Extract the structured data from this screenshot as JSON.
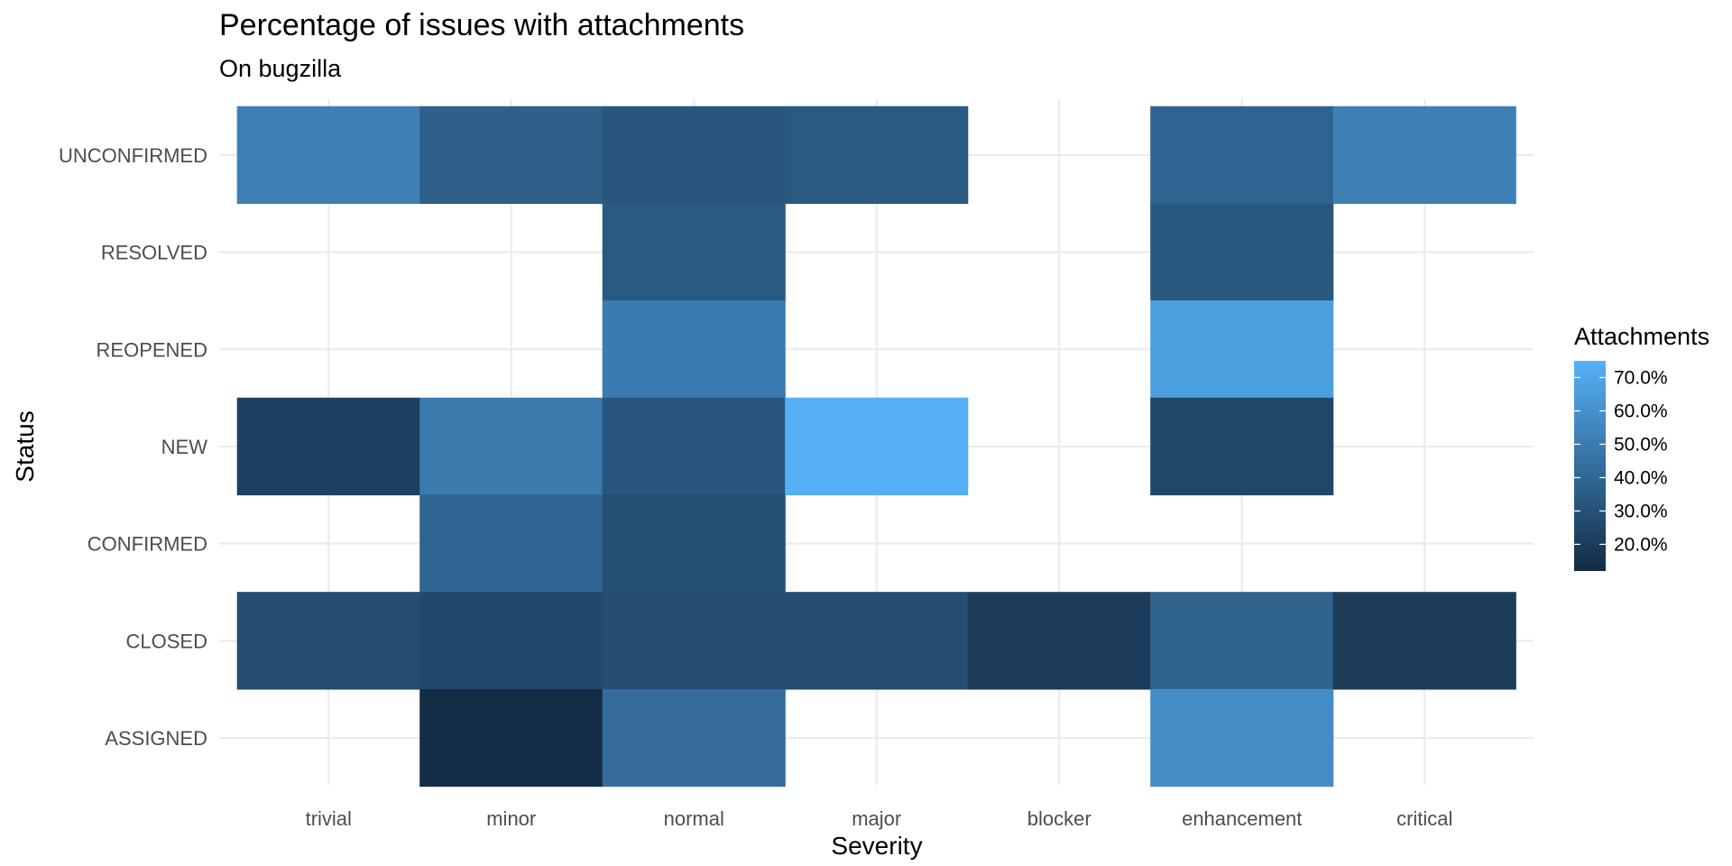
{
  "chart_data": {
    "type": "heatmap",
    "title": "Percentage of issues with attachments",
    "subtitle": "On bugzilla",
    "xlabel": "Severity",
    "ylabel": "Status",
    "x_categories": [
      "trivial",
      "minor",
      "normal",
      "major",
      "blocker",
      "enhancement",
      "critical"
    ],
    "y_categories": [
      "UNCONFIRMED",
      "RESOLVED",
      "REOPENED",
      "NEW",
      "CONFIRMED",
      "CLOSED",
      "ASSIGNED"
    ],
    "cells": [
      {
        "x": "trivial",
        "y": "UNCONFIRMED",
        "value": 52
      },
      {
        "x": "minor",
        "y": "UNCONFIRMED",
        "value": 37
      },
      {
        "x": "normal",
        "y": "UNCONFIRMED",
        "value": 32
      },
      {
        "x": "major",
        "y": "UNCONFIRMED",
        "value": 34
      },
      {
        "x": "enhancement",
        "y": "UNCONFIRMED",
        "value": 39
      },
      {
        "x": "critical",
        "y": "UNCONFIRMED",
        "value": 52
      },
      {
        "x": "normal",
        "y": "RESOLVED",
        "value": 34
      },
      {
        "x": "enhancement",
        "y": "RESOLVED",
        "value": 33
      },
      {
        "x": "normal",
        "y": "REOPENED",
        "value": 50
      },
      {
        "x": "enhancement",
        "y": "REOPENED",
        "value": 67
      },
      {
        "x": "trivial",
        "y": "NEW",
        "value": 22
      },
      {
        "x": "minor",
        "y": "NEW",
        "value": 49
      },
      {
        "x": "normal",
        "y": "NEW",
        "value": 32
      },
      {
        "x": "major",
        "y": "NEW",
        "value": 74
      },
      {
        "x": "enhancement",
        "y": "NEW",
        "value": 25
      },
      {
        "x": "minor",
        "y": "CONFIRMED",
        "value": 39
      },
      {
        "x": "normal",
        "y": "CONFIRMED",
        "value": 29
      },
      {
        "x": "trivial",
        "y": "CLOSED",
        "value": 28
      },
      {
        "x": "minor",
        "y": "CLOSED",
        "value": 26
      },
      {
        "x": "normal",
        "y": "CLOSED",
        "value": 28
      },
      {
        "x": "major",
        "y": "CLOSED",
        "value": 28
      },
      {
        "x": "blocker",
        "y": "CLOSED",
        "value": 20
      },
      {
        "x": "enhancement",
        "y": "CLOSED",
        "value": 38
      },
      {
        "x": "critical",
        "y": "CLOSED",
        "value": 20
      },
      {
        "x": "minor",
        "y": "ASSIGNED",
        "value": 13
      },
      {
        "x": "normal",
        "y": "ASSIGNED",
        "value": 43
      },
      {
        "x": "enhancement",
        "y": "ASSIGNED",
        "value": 58
      }
    ],
    "legend": {
      "title": "Attachments",
      "labels": [
        "70.0%",
        "60.0%",
        "50.0%",
        "40.0%",
        "30.0%",
        "20.0%"
      ],
      "label_values": [
        70,
        60,
        50,
        40,
        30,
        20
      ],
      "range": [
        12,
        75
      ],
      "placement": "right",
      "color_low": "#132b43",
      "color_high": "#56b1f7"
    },
    "grid": true
  }
}
